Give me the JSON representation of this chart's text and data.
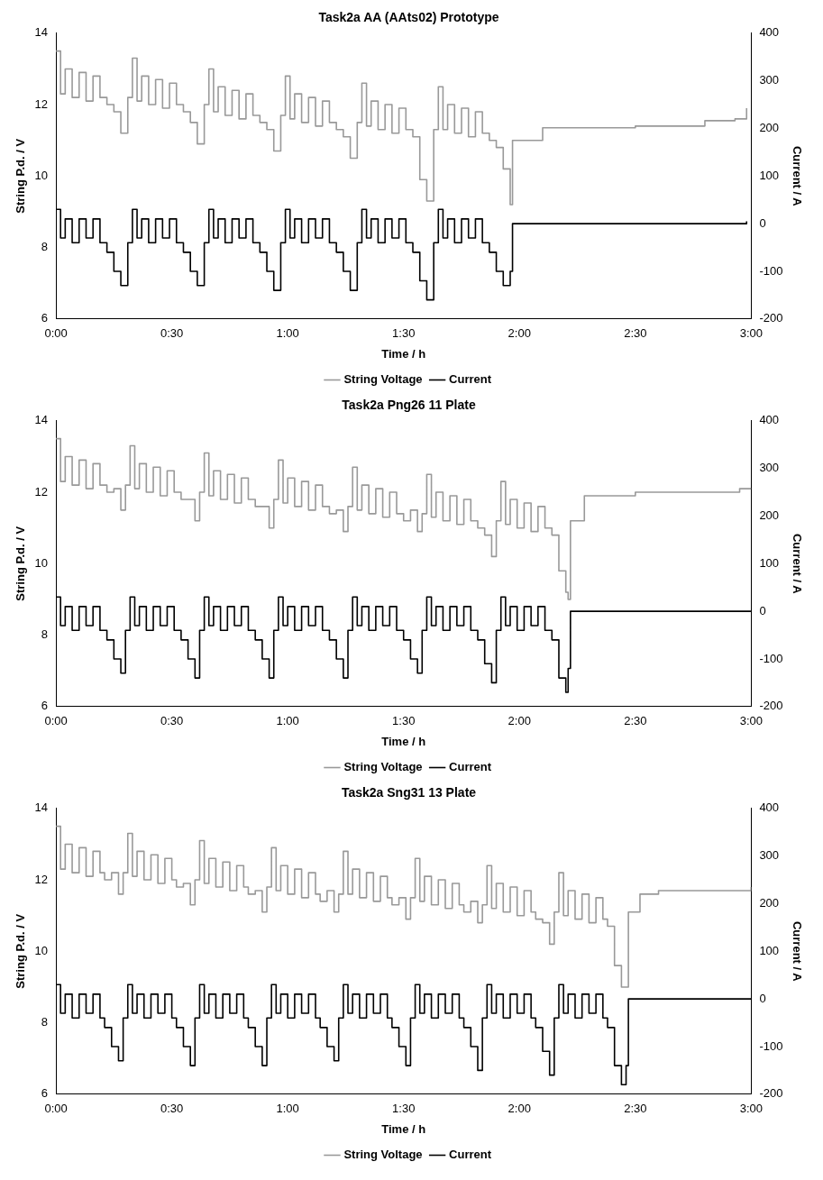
{
  "chart_data": [
    {
      "type": "step",
      "title": "Task2a AA (AAts02) Prototype",
      "xlabel": "Time / h",
      "ylabel": "String P.d. / V",
      "y2label": "Current / A",
      "legend": "bottom",
      "grid": false,
      "xlim": [
        0,
        3
      ],
      "xticks": [
        {
          "value": 0,
          "label": "0:00"
        },
        {
          "value": 0.5,
          "label": "0:30"
        },
        {
          "value": 1,
          "label": "1:00"
        },
        {
          "value": 1.5,
          "label": "1:30"
        },
        {
          "value": 2,
          "label": "2:00"
        },
        {
          "value": 2.5,
          "label": "2:30"
        },
        {
          "value": 3,
          "label": "3:00"
        }
      ],
      "ylim": [
        6,
        14
      ],
      "yticks": [
        6,
        8,
        10,
        12,
        14
      ],
      "y2lim": [
        -200,
        400
      ],
      "y2ticks": [
        -200,
        -100,
        0,
        100,
        200,
        300,
        400
      ],
      "x": [
        0,
        0.02,
        0.04,
        0.07,
        0.1,
        0.13,
        0.16,
        0.19,
        0.22,
        0.25,
        0.28,
        0.31,
        0.33,
        0.35,
        0.37,
        0.4,
        0.43,
        0.46,
        0.49,
        0.52,
        0.55,
        0.58,
        0.61,
        0.64,
        0.66,
        0.68,
        0.7,
        0.73,
        0.76,
        0.79,
        0.82,
        0.85,
        0.88,
        0.91,
        0.94,
        0.97,
        0.99,
        1.01,
        1.03,
        1.06,
        1.09,
        1.12,
        1.15,
        1.18,
        1.21,
        1.24,
        1.27,
        1.3,
        1.32,
        1.34,
        1.36,
        1.39,
        1.42,
        1.45,
        1.48,
        1.51,
        1.54,
        1.57,
        1.6,
        1.63,
        1.65,
        1.67,
        1.69,
        1.72,
        1.75,
        1.78,
        1.81,
        1.84,
        1.87,
        1.9,
        1.93,
        1.96,
        1.97,
        2.1,
        2.5,
        2.8,
        2.93,
        2.98
      ],
      "series": [
        {
          "name": "String Voltage",
          "color": "#999999",
          "values": [
            13.5,
            12.3,
            13.0,
            12.2,
            12.9,
            12.1,
            12.8,
            12.2,
            12.0,
            11.8,
            11.2,
            12.2,
            13.3,
            12.1,
            12.8,
            12.0,
            12.7,
            11.9,
            12.6,
            12.0,
            11.8,
            11.5,
            10.9,
            12.0,
            13.0,
            11.8,
            12.5,
            11.7,
            12.4,
            11.6,
            12.3,
            11.7,
            11.5,
            11.3,
            10.7,
            11.7,
            12.8,
            11.6,
            12.3,
            11.5,
            12.2,
            11.4,
            12.1,
            11.5,
            11.3,
            11.1,
            10.5,
            11.5,
            12.6,
            11.4,
            12.1,
            11.3,
            12.0,
            11.2,
            11.9,
            11.3,
            11.1,
            9.9,
            9.3,
            11.3,
            12.5,
            11.3,
            12.0,
            11.2,
            11.9,
            11.1,
            11.8,
            11.2,
            11.0,
            10.8,
            10.2,
            9.2,
            11.0,
            11.35,
            11.4,
            11.55,
            11.6,
            11.9
          ]
        },
        {
          "name": "Current",
          "color": "#000000",
          "axis": "y2",
          "values": [
            30,
            -30,
            10,
            -40,
            10,
            -30,
            10,
            -40,
            -60,
            -100,
            -130,
            -40,
            30,
            -30,
            10,
            -40,
            10,
            -30,
            10,
            -40,
            -60,
            -100,
            -130,
            -40,
            30,
            -30,
            10,
            -40,
            10,
            -30,
            10,
            -40,
            -60,
            -100,
            -140,
            -40,
            30,
            -30,
            10,
            -40,
            10,
            -30,
            10,
            -40,
            -60,
            -100,
            -140,
            -40,
            30,
            -30,
            10,
            -40,
            10,
            -30,
            10,
            -40,
            -60,
            -120,
            -160,
            -40,
            30,
            -30,
            10,
            -40,
            10,
            -30,
            10,
            -40,
            -60,
            -100,
            -130,
            -100,
            0,
            0,
            0,
            0,
            0,
            5
          ]
        }
      ]
    },
    {
      "type": "step",
      "title": "Task2a Png26 11 Plate",
      "xlabel": "Time / h",
      "ylabel": "String P.d. / V",
      "y2label": "Current / A",
      "legend": "bottom",
      "grid": false,
      "xlim": [
        0,
        3
      ],
      "xticks": [
        {
          "value": 0,
          "label": "0:00"
        },
        {
          "value": 0.5,
          "label": "0:30"
        },
        {
          "value": 1,
          "label": "1:00"
        },
        {
          "value": 1.5,
          "label": "1:30"
        },
        {
          "value": 2,
          "label": "2:00"
        },
        {
          "value": 2.5,
          "label": "2:30"
        },
        {
          "value": 3,
          "label": "3:00"
        }
      ],
      "ylim": [
        6,
        14
      ],
      "yticks": [
        6,
        8,
        10,
        12,
        14
      ],
      "y2lim": [
        -200,
        400
      ],
      "y2ticks": [
        -200,
        -100,
        0,
        100,
        200,
        300,
        400
      ],
      "x": [
        0,
        0.02,
        0.04,
        0.07,
        0.1,
        0.13,
        0.16,
        0.19,
        0.22,
        0.25,
        0.28,
        0.3,
        0.32,
        0.34,
        0.36,
        0.39,
        0.42,
        0.45,
        0.48,
        0.51,
        0.54,
        0.57,
        0.6,
        0.62,
        0.64,
        0.66,
        0.68,
        0.71,
        0.74,
        0.77,
        0.8,
        0.83,
        0.86,
        0.89,
        0.92,
        0.94,
        0.96,
        0.98,
        1.0,
        1.03,
        1.06,
        1.09,
        1.12,
        1.15,
        1.18,
        1.21,
        1.24,
        1.26,
        1.28,
        1.3,
        1.32,
        1.35,
        1.38,
        1.41,
        1.44,
        1.47,
        1.5,
        1.53,
        1.56,
        1.58,
        1.6,
        1.62,
        1.64,
        1.67,
        1.7,
        1.73,
        1.76,
        1.79,
        1.82,
        1.85,
        1.88,
        1.9,
        1.92,
        1.94,
        1.96,
        1.99,
        2.02,
        2.05,
        2.08,
        2.11,
        2.14,
        2.17,
        2.2,
        2.21,
        2.22,
        2.28,
        2.5,
        2.8,
        2.95,
        3.0
      ],
      "series": [
        {
          "name": "String Voltage",
          "color": "#999999",
          "values": [
            13.5,
            12.3,
            13.0,
            12.2,
            12.9,
            12.1,
            12.8,
            12.2,
            12.0,
            12.1,
            11.5,
            12.2,
            13.3,
            12.1,
            12.8,
            12.0,
            12.7,
            11.9,
            12.6,
            12.0,
            11.8,
            11.8,
            11.2,
            12.0,
            13.1,
            11.9,
            12.6,
            11.8,
            12.5,
            11.7,
            12.4,
            11.8,
            11.6,
            11.6,
            11.0,
            11.8,
            12.9,
            11.7,
            12.4,
            11.6,
            12.3,
            11.5,
            12.2,
            11.6,
            11.4,
            11.5,
            10.9,
            11.6,
            12.7,
            11.5,
            12.2,
            11.4,
            12.1,
            11.3,
            12.0,
            11.4,
            11.2,
            11.5,
            10.9,
            11.4,
            12.5,
            11.3,
            12.0,
            11.2,
            11.9,
            11.1,
            11.8,
            11.2,
            11.0,
            10.8,
            10.2,
            11.2,
            12.3,
            11.1,
            11.8,
            11.0,
            11.7,
            10.9,
            11.6,
            11.0,
            10.8,
            9.8,
            9.2,
            9.0,
            11.2,
            11.9,
            12.0,
            12.0,
            12.1,
            12.1
          ]
        },
        {
          "name": "Current",
          "color": "#000000",
          "axis": "y2",
          "values": [
            30,
            -30,
            10,
            -40,
            10,
            -30,
            10,
            -40,
            -60,
            -100,
            -130,
            -40,
            30,
            -30,
            10,
            -40,
            10,
            -30,
            10,
            -40,
            -60,
            -100,
            -140,
            -40,
            30,
            -30,
            10,
            -40,
            10,
            -30,
            10,
            -40,
            -60,
            -100,
            -140,
            -40,
            30,
            -30,
            10,
            -40,
            10,
            -30,
            10,
            -40,
            -60,
            -100,
            -140,
            -40,
            30,
            -30,
            10,
            -40,
            10,
            -30,
            10,
            -40,
            -60,
            -100,
            -130,
            -40,
            30,
            -30,
            10,
            -40,
            10,
            -30,
            10,
            -40,
            -60,
            -110,
            -150,
            -40,
            30,
            -30,
            10,
            -40,
            10,
            -30,
            10,
            -40,
            -60,
            -140,
            -170,
            -120,
            0,
            0,
            0,
            0,
            0,
            0
          ]
        }
      ]
    },
    {
      "type": "step",
      "title": "Task2a Sng31 13 Plate",
      "xlabel": "Time / h",
      "ylabel": "String P.d. / V",
      "y2label": "Current / A",
      "legend": "bottom",
      "grid": false,
      "xlim": [
        0,
        3
      ],
      "xticks": [
        {
          "value": 0,
          "label": "0:00"
        },
        {
          "value": 0.5,
          "label": "0:30"
        },
        {
          "value": 1,
          "label": "1:00"
        },
        {
          "value": 1.5,
          "label": "1:30"
        },
        {
          "value": 2,
          "label": "2:00"
        },
        {
          "value": 2.5,
          "label": "2:30"
        },
        {
          "value": 3,
          "label": "3:00"
        }
      ],
      "ylim": [
        6,
        14
      ],
      "yticks": [
        6,
        8,
        10,
        12,
        14
      ],
      "y2lim": [
        -200,
        400
      ],
      "y2ticks": [
        -200,
        -100,
        0,
        100,
        200,
        300,
        400
      ],
      "x": [
        0,
        0.02,
        0.04,
        0.07,
        0.1,
        0.13,
        0.16,
        0.19,
        0.21,
        0.24,
        0.27,
        0.29,
        0.31,
        0.33,
        0.35,
        0.38,
        0.41,
        0.44,
        0.47,
        0.5,
        0.52,
        0.55,
        0.58,
        0.6,
        0.62,
        0.64,
        0.66,
        0.69,
        0.72,
        0.75,
        0.78,
        0.81,
        0.83,
        0.86,
        0.89,
        0.91,
        0.93,
        0.95,
        0.97,
        1.0,
        1.03,
        1.06,
        1.09,
        1.12,
        1.14,
        1.17,
        1.2,
        1.22,
        1.24,
        1.26,
        1.28,
        1.31,
        1.34,
        1.37,
        1.4,
        1.43,
        1.45,
        1.48,
        1.51,
        1.53,
        1.55,
        1.57,
        1.59,
        1.62,
        1.65,
        1.68,
        1.71,
        1.74,
        1.76,
        1.79,
        1.82,
        1.84,
        1.86,
        1.88,
        1.9,
        1.93,
        1.96,
        1.99,
        2.02,
        2.05,
        2.07,
        2.1,
        2.13,
        2.15,
        2.17,
        2.19,
        2.21,
        2.24,
        2.27,
        2.3,
        2.33,
        2.36,
        2.38,
        2.41,
        2.44,
        2.46,
        2.47,
        2.52,
        2.6,
        2.8,
        3.0
      ],
      "series": [
        {
          "name": "String Voltage",
          "color": "#999999",
          "values": [
            13.5,
            12.3,
            13.0,
            12.2,
            12.9,
            12.1,
            12.8,
            12.2,
            12.0,
            12.2,
            11.6,
            12.2,
            13.3,
            12.1,
            12.8,
            12.0,
            12.7,
            11.9,
            12.6,
            12.0,
            11.8,
            11.9,
            11.3,
            12.0,
            13.1,
            11.9,
            12.6,
            11.8,
            12.5,
            11.7,
            12.4,
            11.8,
            11.6,
            11.7,
            11.1,
            11.8,
            12.9,
            11.7,
            12.4,
            11.6,
            12.3,
            11.5,
            12.2,
            11.6,
            11.4,
            11.7,
            11.1,
            11.6,
            12.8,
            11.6,
            12.3,
            11.5,
            12.2,
            11.4,
            12.1,
            11.5,
            11.3,
            11.5,
            10.9,
            11.5,
            12.6,
            11.4,
            12.1,
            11.3,
            12.0,
            11.2,
            11.9,
            11.3,
            11.1,
            11.4,
            10.8,
            11.3,
            12.4,
            11.2,
            11.9,
            11.1,
            11.8,
            11.0,
            11.7,
            11.1,
            10.9,
            10.8,
            10.2,
            11.1,
            12.2,
            11.0,
            11.7,
            10.9,
            11.6,
            10.8,
            11.5,
            10.9,
            10.7,
            9.6,
            9.0,
            9.0,
            11.1,
            11.6,
            11.7,
            11.7,
            11.8
          ]
        },
        {
          "name": "Current",
          "color": "#000000",
          "axis": "y2",
          "values": [
            30,
            -30,
            10,
            -40,
            10,
            -30,
            10,
            -40,
            -60,
            -100,
            -130,
            -40,
            30,
            -30,
            10,
            -40,
            10,
            -30,
            10,
            -40,
            -60,
            -100,
            -140,
            -40,
            30,
            -30,
            10,
            -40,
            10,
            -30,
            10,
            -40,
            -60,
            -100,
            -140,
            -40,
            30,
            -30,
            10,
            -40,
            10,
            -30,
            10,
            -40,
            -60,
            -100,
            -130,
            -40,
            30,
            -30,
            10,
            -40,
            10,
            -30,
            10,
            -40,
            -60,
            -100,
            -140,
            -40,
            30,
            -30,
            10,
            -40,
            10,
            -30,
            10,
            -40,
            -60,
            -100,
            -150,
            -40,
            30,
            -30,
            10,
            -40,
            10,
            -30,
            10,
            -40,
            -60,
            -110,
            -160,
            -40,
            30,
            -30,
            10,
            -40,
            10,
            -30,
            10,
            -40,
            -60,
            -140,
            -180,
            -140,
            0,
            0,
            0,
            0,
            0
          ]
        }
      ]
    }
  ]
}
